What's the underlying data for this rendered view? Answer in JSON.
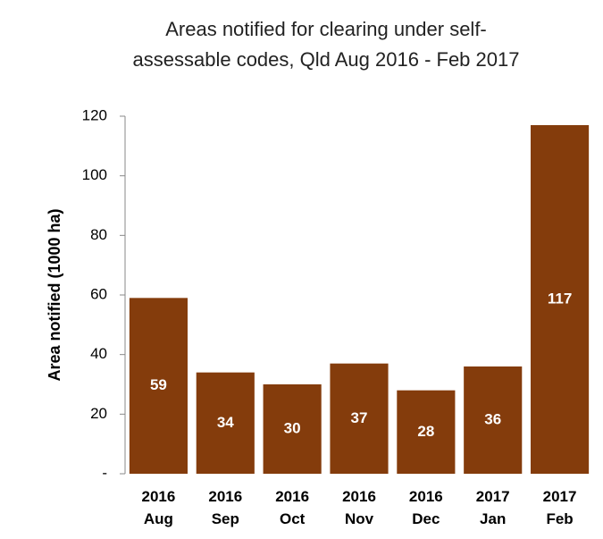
{
  "chart_data": {
    "type": "bar",
    "title": "Areas notified for clearing under self-assessable codes, Qld Aug 2016 - Feb 2017",
    "y_label": "Area notified (1000 ha)",
    "categories": [
      "2016 Aug",
      "2016 Sep",
      "2016 Oct",
      "2016 Nov",
      "2016 Dec",
      "2017 Jan",
      "2017 Feb"
    ],
    "values": [
      59,
      34,
      30,
      37,
      28,
      36,
      117
    ],
    "color": "#843c0c",
    "ylim": [
      0,
      120
    ],
    "yticks": [
      {
        "value": 0,
        "label": "-"
      },
      20,
      40,
      60,
      80,
      100,
      120
    ],
    "grid": false
  }
}
